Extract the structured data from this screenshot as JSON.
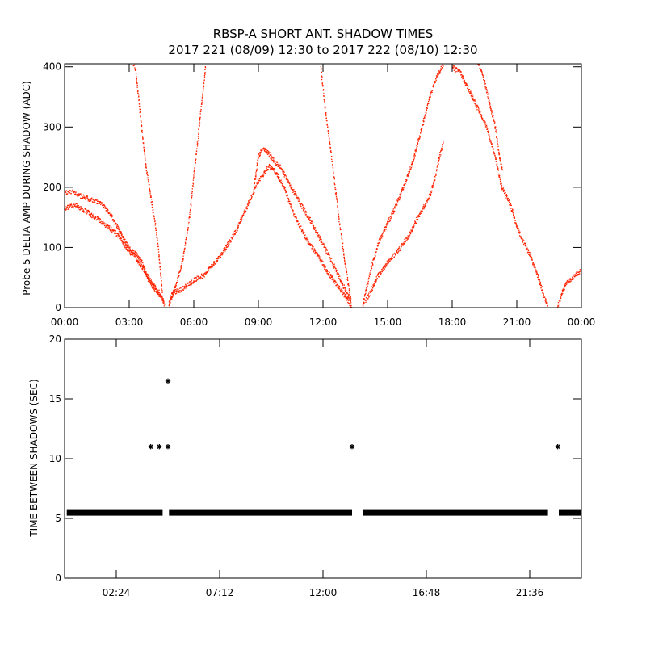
{
  "title_line1": "RBSP-A SHORT ANT. SHADOW TIMES",
  "title_line2": "2017 221 (08/09) 12:30 to 2017 222 (08/10) 12:30",
  "colors": {
    "axes": "#000000",
    "top_series": "#ff2200",
    "bottom_series": "#000000",
    "background": "#ffffff"
  },
  "chart_data": [
    {
      "type": "scatter",
      "title": "",
      "xlabel": "",
      "ylabel": "Probe 5 DELTA AMP DURING SHADOW (ADC)",
      "x_unit": "hours",
      "xlim": [
        0,
        24
      ],
      "ylim": [
        0,
        405
      ],
      "xtick_values": [
        0,
        3,
        6,
        9,
        12,
        15,
        18,
        21,
        24
      ],
      "xtick_labels": [
        "00:00",
        "03:00",
        "06:00",
        "09:00",
        "12:00",
        "15:00",
        "18:00",
        "21:00",
        "00:00"
      ],
      "ytick_values": [
        0,
        100,
        200,
        300,
        400
      ],
      "ytick_labels": [
        "0",
        "100",
        "200",
        "300",
        "400"
      ],
      "grid": false,
      "series": [
        {
          "color": "#ff2200",
          "traces": [
            [
              [
                0.0,
                165
              ],
              [
                0.5,
                170
              ],
              [
                1.0,
                160
              ],
              [
                1.5,
                148
              ],
              [
                2.0,
                135
              ],
              [
                2.5,
                120
              ],
              [
                3.0,
                92
              ],
              [
                3.3,
                90
              ],
              [
                3.6,
                75
              ],
              [
                3.9,
                45
              ],
              [
                4.2,
                30
              ],
              [
                4.5,
                18
              ],
              [
                4.65,
                5
              ]
            ],
            [
              [
                0.0,
                192
              ],
              [
                0.4,
                192
              ],
              [
                0.8,
                185
              ],
              [
                1.2,
                180
              ],
              [
                1.6,
                175
              ],
              [
                2.0,
                162
              ],
              [
                2.4,
                138
              ],
              [
                2.8,
                110
              ],
              [
                3.2,
                90
              ],
              [
                3.5,
                72
              ],
              [
                3.8,
                55
              ],
              [
                4.1,
                38
              ],
              [
                4.4,
                25
              ],
              [
                4.6,
                10
              ]
            ],
            [
              [
                3.2,
                405
              ],
              [
                3.3,
                395
              ],
              [
                3.45,
                345
              ],
              [
                3.6,
                290
              ],
              [
                3.8,
                230
              ],
              [
                4.0,
                185
              ],
              [
                4.2,
                140
              ],
              [
                4.35,
                100
              ],
              [
                4.45,
                60
              ],
              [
                4.55,
                20
              ]
            ],
            [
              [
                4.85,
                5
              ],
              [
                5.0,
                25
              ],
              [
                5.4,
                30
              ],
              [
                6.0,
                45
              ],
              [
                6.5,
                55
              ],
              [
                7.0,
                75
              ],
              [
                7.5,
                100
              ],
              [
                8.0,
                130
              ],
              [
                8.5,
                170
              ],
              [
                9.0,
                210
              ],
              [
                9.5,
                235
              ],
              [
                9.8,
                225
              ],
              [
                10.2,
                200
              ],
              [
                10.7,
                150
              ],
              [
                11.3,
                110
              ],
              [
                11.8,
                85
              ],
              [
                12.2,
                60
              ],
              [
                12.6,
                40
              ],
              [
                13.0,
                20
              ],
              [
                13.35,
                2
              ]
            ],
            [
              [
                4.85,
                5
              ],
              [
                5.2,
                40
              ],
              [
                5.5,
                80
              ],
              [
                5.8,
                150
              ],
              [
                6.1,
                250
              ],
              [
                6.4,
                350
              ],
              [
                6.55,
                400
              ]
            ],
            [
              [
                8.8,
                200
              ],
              [
                9.0,
                250
              ],
              [
                9.2,
                265
              ],
              [
                9.5,
                255
              ],
              [
                9.8,
                240
              ],
              [
                10.0,
                235
              ],
              [
                10.3,
                215
              ],
              [
                10.6,
                195
              ],
              [
                11.0,
                170
              ],
              [
                11.5,
                140
              ],
              [
                12.0,
                105
              ],
              [
                12.5,
                70
              ],
              [
                12.9,
                40
              ],
              [
                13.3,
                10
              ]
            ],
            [
              [
                11.9,
                400
              ],
              [
                12.1,
                330
              ],
              [
                12.4,
                250
              ],
              [
                12.7,
                160
              ],
              [
                13.0,
                80
              ],
              [
                13.3,
                10
              ]
            ],
            [
              [
                13.85,
                5
              ],
              [
                14.2,
                25
              ],
              [
                14.5,
                50
              ],
              [
                15.0,
                75
              ],
              [
                15.5,
                95
              ],
              [
                16.0,
                120
              ],
              [
                16.4,
                150
              ],
              [
                16.8,
                175
              ],
              [
                17.0,
                190
              ],
              [
                17.2,
                215
              ],
              [
                17.4,
                250
              ],
              [
                17.6,
                275
              ]
            ],
            [
              [
                13.85,
                5
              ],
              [
                14.2,
                60
              ],
              [
                14.6,
                110
              ],
              [
                15.0,
                140
              ],
              [
                15.4,
                170
              ],
              [
                15.8,
                205
              ],
              [
                16.2,
                245
              ],
              [
                16.6,
                300
              ],
              [
                17.0,
                355
              ],
              [
                17.3,
                385
              ],
              [
                17.6,
                405
              ]
            ],
            [
              [
                18.0,
                400
              ],
              [
                18.4,
                390
              ],
              [
                18.8,
                360
              ],
              [
                19.2,
                330
              ],
              [
                19.6,
                300
              ],
              [
                20.0,
                250
              ],
              [
                20.3,
                200
              ],
              [
                20.6,
                180
              ],
              [
                20.8,
                160
              ],
              [
                21.0,
                135
              ],
              [
                21.3,
                110
              ],
              [
                21.7,
                80
              ],
              [
                22.0,
                50
              ],
              [
                22.3,
                15
              ],
              [
                22.45,
                2
              ]
            ],
            [
              [
                19.2,
                405
              ],
              [
                19.4,
                390
              ],
              [
                19.6,
                360
              ],
              [
                19.8,
                330
              ],
              [
                20.0,
                300
              ],
              [
                20.2,
                250
              ],
              [
                20.35,
                225
              ]
            ],
            [
              [
                22.9,
                2
              ],
              [
                23.1,
                25
              ],
              [
                23.3,
                40
              ],
              [
                23.6,
                50
              ],
              [
                24.0,
                62
              ]
            ]
          ]
        }
      ]
    },
    {
      "type": "scatter",
      "title": "",
      "xlabel": "",
      "ylabel": "TIME BETWEEN SHADOWS (SEC)",
      "x_unit": "hours",
      "xlim": [
        0,
        24
      ],
      "ylim": [
        0,
        20
      ],
      "xtick_values": [
        2.4,
        7.2,
        12.0,
        16.8,
        21.6
      ],
      "xtick_labels": [
        "02:24",
        "07:12",
        "12:00",
        "16:48",
        "21:36"
      ],
      "ytick_values": [
        0,
        5,
        10,
        15,
        20
      ],
      "ytick_labels": [
        "0",
        "5",
        "10",
        "15",
        "20"
      ],
      "grid": false,
      "series": [
        {
          "color": "#000000",
          "marker": "asterisk",
          "band_segments": [
            [
              0.1,
              4.55,
              5.5
            ],
            [
              4.85,
              13.35,
              5.5
            ],
            [
              13.85,
              22.45,
              5.5
            ],
            [
              22.95,
              24.0,
              5.5
            ]
          ],
          "points": [
            [
              4.0,
              11.0
            ],
            [
              4.4,
              11.0
            ],
            [
              4.8,
              11.0
            ],
            [
              4.8,
              16.5
            ],
            [
              13.35,
              11.0
            ],
            [
              22.9,
              11.0
            ]
          ]
        }
      ]
    }
  ]
}
